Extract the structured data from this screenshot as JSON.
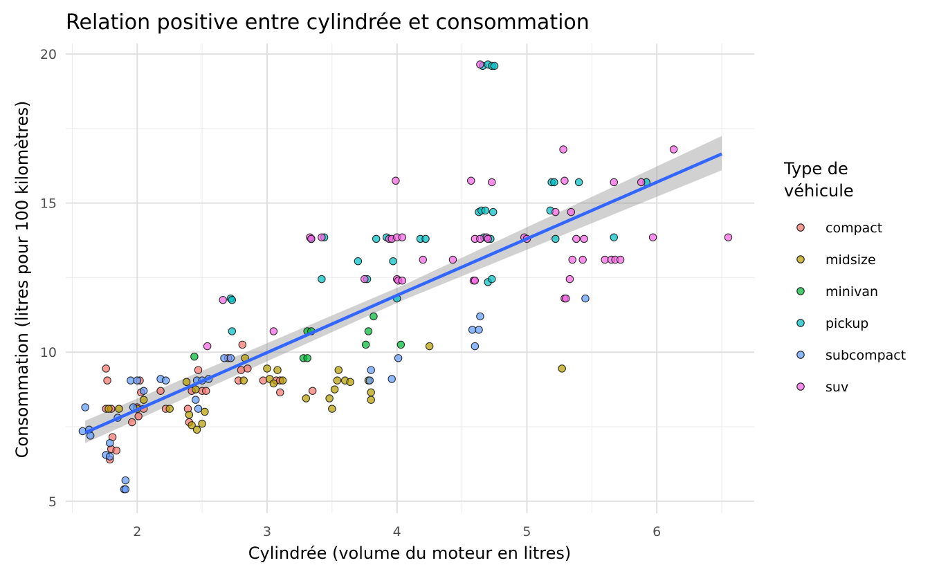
{
  "chart_data": {
    "type": "scatter",
    "title": "Relation positive entre cylindrée et consommation",
    "xlabel": "Cylindrée (volume du moteur en litres)",
    "ylabel": "Consommation (litres pour 100 kilomètres)",
    "xlim": [
      1.45,
      6.75
    ],
    "ylim": [
      4.6,
      20.35
    ],
    "x_ticks": [
      2,
      3,
      4,
      5,
      6
    ],
    "y_ticks": [
      5,
      10,
      15,
      20
    ],
    "grid": true,
    "legend": {
      "title_lines": [
        "Type de",
        "véhicule"
      ],
      "position": "right"
    },
    "series": [
      {
        "name": "compact",
        "color": "#F8766D",
        "points": [
          [
            1.76,
            9.45
          ],
          [
            1.77,
            9.05
          ],
          [
            1.76,
            8.1
          ],
          [
            1.8,
            6.75
          ],
          [
            1.81,
            7.15
          ],
          [
            1.79,
            6.4
          ],
          [
            1.84,
            6.7
          ],
          [
            1.8,
            8.1
          ],
          [
            1.96,
            7.65
          ],
          [
            2.0,
            8.15
          ],
          [
            2.01,
            7.85
          ],
          [
            2.02,
            9.05
          ],
          [
            2.03,
            8.65
          ],
          [
            2.05,
            8.1
          ],
          [
            2.18,
            8.7
          ],
          [
            2.22,
            8.1
          ],
          [
            2.39,
            8.1
          ],
          [
            2.4,
            7.65
          ],
          [
            2.42,
            8.7
          ],
          [
            2.47,
            9.4
          ],
          [
            2.5,
            8.7
          ],
          [
            2.53,
            8.7
          ],
          [
            2.7,
            9.8
          ],
          [
            2.78,
            9.05
          ],
          [
            2.8,
            9.4
          ],
          [
            2.81,
            10.25
          ],
          [
            2.85,
            9.45
          ],
          [
            2.97,
            9.05
          ],
          [
            3.07,
            9.05
          ],
          [
            3.1,
            9.05
          ],
          [
            3.1,
            8.65
          ],
          [
            3.35,
            8.7
          ]
        ]
      },
      {
        "name": "midsize",
        "color": "#B79F00",
        "points": [
          [
            1.78,
            8.1
          ],
          [
            1.86,
            8.1
          ],
          [
            2.0,
            8.1
          ],
          [
            2.05,
            8.4
          ],
          [
            2.25,
            8.1
          ],
          [
            2.38,
            9.0
          ],
          [
            2.4,
            7.9
          ],
          [
            2.42,
            7.55
          ],
          [
            2.45,
            8.75
          ],
          [
            2.46,
            7.4
          ],
          [
            2.5,
            7.6
          ],
          [
            2.52,
            8.0
          ],
          [
            2.82,
            9.05
          ],
          [
            2.83,
            9.8
          ],
          [
            3.0,
            9.45
          ],
          [
            3.02,
            9.1
          ],
          [
            3.05,
            8.95
          ],
          [
            3.08,
            9.4
          ],
          [
            3.12,
            9.05
          ],
          [
            3.3,
            8.45
          ],
          [
            3.48,
            8.45
          ],
          [
            3.5,
            8.1
          ],
          [
            3.52,
            8.75
          ],
          [
            3.54,
            9.05
          ],
          [
            3.55,
            9.4
          ],
          [
            3.6,
            9.05
          ],
          [
            3.64,
            9.0
          ],
          [
            3.78,
            9.05
          ],
          [
            3.8,
            8.65
          ],
          [
            3.8,
            8.4
          ],
          [
            4.25,
            10.2
          ],
          [
            5.27,
            9.45
          ]
        ]
      },
      {
        "name": "minivan",
        "color": "#00BA38",
        "points": [
          [
            2.44,
            9.85
          ],
          [
            3.28,
            9.8
          ],
          [
            3.31,
            9.8
          ],
          [
            3.31,
            10.7
          ],
          [
            3.34,
            10.7
          ],
          [
            3.76,
            10.25
          ],
          [
            3.78,
            10.7
          ],
          [
            3.82,
            11.2
          ],
          [
            4.03,
            10.25
          ]
        ]
      },
      {
        "name": "pickup",
        "color": "#00BFC4",
        "points": [
          [
            2.72,
            11.8
          ],
          [
            2.73,
            11.75
          ],
          [
            2.73,
            10.7
          ],
          [
            3.34,
            13.8
          ],
          [
            3.42,
            12.45
          ],
          [
            3.44,
            13.85
          ],
          [
            3.7,
            13.05
          ],
          [
            3.77,
            12.45
          ],
          [
            3.84,
            13.8
          ],
          [
            3.92,
            13.85
          ],
          [
            3.97,
            13.05
          ],
          [
            4.0,
            11.8
          ],
          [
            4.18,
            13.8
          ],
          [
            4.22,
            13.8
          ],
          [
            4.63,
            14.7
          ],
          [
            4.65,
            14.75
          ],
          [
            4.68,
            14.75
          ],
          [
            4.7,
            12.35
          ],
          [
            4.73,
            12.45
          ],
          [
            4.74,
            14.7
          ],
          [
            4.66,
            19.6
          ],
          [
            4.7,
            19.65
          ],
          [
            4.73,
            19.6
          ],
          [
            4.75,
            19.6
          ],
          [
            4.67,
            13.85
          ],
          [
            4.72,
            13.8
          ],
          [
            5.18,
            14.75
          ],
          [
            5.19,
            15.7
          ],
          [
            5.21,
            15.7
          ],
          [
            5.22,
            13.8
          ],
          [
            5.4,
            15.7
          ],
          [
            5.67,
            13.85
          ],
          [
            5.92,
            15.7
          ]
        ]
      },
      {
        "name": "subcompact",
        "color": "#619CFF",
        "points": [
          [
            1.58,
            7.35
          ],
          [
            1.6,
            8.15
          ],
          [
            1.63,
            7.4
          ],
          [
            1.64,
            7.2
          ],
          [
            1.76,
            6.55
          ],
          [
            1.79,
            6.95
          ],
          [
            1.79,
            6.5
          ],
          [
            1.85,
            7.8
          ],
          [
            1.9,
            5.4
          ],
          [
            1.91,
            5.7
          ],
          [
            1.91,
            5.4
          ],
          [
            1.95,
            9.05
          ],
          [
            1.97,
            8.15
          ],
          [
            2.0,
            9.05
          ],
          [
            2.05,
            8.7
          ],
          [
            2.18,
            9.1
          ],
          [
            2.22,
            9.05
          ],
          [
            2.45,
            8.4
          ],
          [
            2.46,
            9.05
          ],
          [
            2.47,
            8.1
          ],
          [
            2.5,
            9.05
          ],
          [
            2.55,
            9.1
          ],
          [
            2.67,
            9.8
          ],
          [
            2.72,
            9.8
          ],
          [
            3.79,
            9.05
          ],
          [
            3.8,
            9.4
          ],
          [
            3.96,
            9.1
          ],
          [
            4.01,
            9.8
          ],
          [
            4.58,
            10.75
          ],
          [
            4.6,
            10.2
          ],
          [
            4.63,
            10.75
          ],
          [
            4.64,
            11.2
          ],
          [
            5.45,
            11.8
          ]
        ]
      },
      {
        "name": "suv",
        "color": "#F564E3",
        "points": [
          [
            2.66,
            11.75
          ],
          [
            2.54,
            10.2
          ],
          [
            3.05,
            10.7
          ],
          [
            3.33,
            13.85
          ],
          [
            3.34,
            13.8
          ],
          [
            3.42,
            13.85
          ],
          [
            3.75,
            12.45
          ],
          [
            3.94,
            13.8
          ],
          [
            3.96,
            13.8
          ],
          [
            3.99,
            15.75
          ],
          [
            4.0,
            13.85
          ],
          [
            4.0,
            12.45
          ],
          [
            4.01,
            12.4
          ],
          [
            4.04,
            12.4
          ],
          [
            4.04,
            13.85
          ],
          [
            4.2,
            13.1
          ],
          [
            4.43,
            13.1
          ],
          [
            4.57,
            15.75
          ],
          [
            4.59,
            12.4
          ],
          [
            4.6,
            13.8
          ],
          [
            4.6,
            12.4
          ],
          [
            4.64,
            13.8
          ],
          [
            4.69,
            13.85
          ],
          [
            4.7,
            13.8
          ],
          [
            4.73,
            15.7
          ],
          [
            4.64,
            19.65
          ],
          [
            4.98,
            13.85
          ],
          [
            5.0,
            13.8
          ],
          [
            5.22,
            14.7
          ],
          [
            5.28,
            16.8
          ],
          [
            5.29,
            15.75
          ],
          [
            5.29,
            11.8
          ],
          [
            5.3,
            11.8
          ],
          [
            5.33,
            12.45
          ],
          [
            5.34,
            14.7
          ],
          [
            5.35,
            13.1
          ],
          [
            5.38,
            13.8
          ],
          [
            5.43,
            13.1
          ],
          [
            5.44,
            13.8
          ],
          [
            5.6,
            13.1
          ],
          [
            5.65,
            13.1
          ],
          [
            5.67,
            15.7
          ],
          [
            5.68,
            13.1
          ],
          [
            5.72,
            13.1
          ],
          [
            5.88,
            15.7
          ],
          [
            5.97,
            13.85
          ],
          [
            6.13,
            16.8
          ],
          [
            6.55,
            13.85
          ]
        ]
      }
    ],
    "trend": {
      "label": "lm",
      "color": "#3366FF",
      "band_color": "#999999",
      "x_range": [
        1.6,
        6.5
      ],
      "fit": [
        [
          1.6,
          7.3
        ],
        [
          4.05,
          12.0
        ],
        [
          6.5,
          16.65
        ]
      ],
      "band": [
        [
          1.6,
          6.95,
          7.7
        ],
        [
          4.05,
          11.75,
          12.25
        ],
        [
          6.5,
          16.1,
          17.25
        ]
      ]
    }
  }
}
